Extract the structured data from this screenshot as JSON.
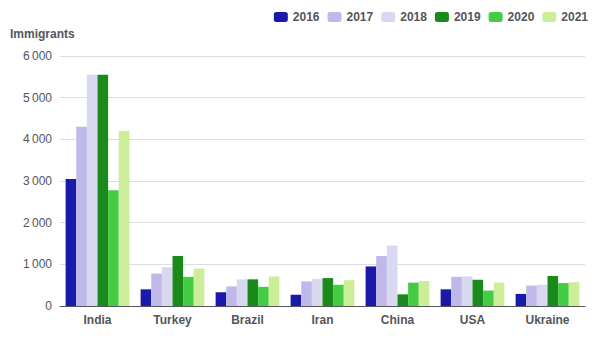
{
  "chart_data": {
    "type": "bar",
    "ylabel": "Immigrants",
    "categories": [
      "India",
      "Turkey",
      "Brazil",
      "Iran",
      "China",
      "USA",
      "Ukraine"
    ],
    "series": [
      {
        "name": "2016",
        "color": "#1a1aaa",
        "values": [
          3050,
          400,
          330,
          270,
          950,
          400,
          290
        ]
      },
      {
        "name": "2017",
        "color": "#c0b8e8",
        "values": [
          4300,
          780,
          470,
          590,
          1200,
          700,
          490
        ]
      },
      {
        "name": "2018",
        "color": "#d8d8f0",
        "values": [
          5550,
          930,
          640,
          650,
          1450,
          710,
          510
        ]
      },
      {
        "name": "2019",
        "color": "#1a8a1a",
        "values": [
          5550,
          1200,
          640,
          670,
          280,
          630,
          720
        ]
      },
      {
        "name": "2020",
        "color": "#44cc44",
        "values": [
          2780,
          700,
          460,
          510,
          560,
          370,
          550
        ]
      },
      {
        "name": "2021",
        "color": "#ccee99",
        "values": [
          4200,
          900,
          710,
          620,
          600,
          560,
          570
        ]
      }
    ],
    "ylim": [
      0,
      6000
    ],
    "yticks": [
      0,
      {
        "value": 1000,
        "label": "1 000"
      },
      {
        "value": 2000,
        "label": "2 000"
      },
      {
        "value": 3000,
        "label": "3 000"
      },
      {
        "value": 4000,
        "label": "4 000"
      },
      {
        "value": 5000,
        "label": "5 000"
      },
      {
        "value": 6000,
        "label": "6 000"
      }
    ],
    "grid": true,
    "legend": "upper right"
  }
}
